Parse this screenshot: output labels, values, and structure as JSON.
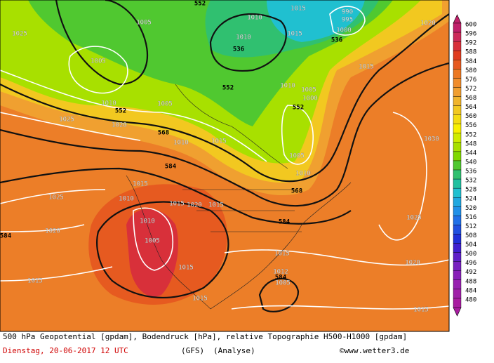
{
  "map": {
    "contour_labels": [
      552,
      1015,
      1010,
      1025,
      1005,
      1005,
      536,
      536,
      1000,
      995,
      990,
      1015,
      1010,
      1020,
      552,
      1015,
      1010,
      1005,
      1000,
      552,
      552,
      1010,
      1005,
      1025,
      1020,
      568,
      1010,
      1015,
      1030,
      584,
      1005,
      1010,
      568,
      1015,
      1010,
      1015,
      1020,
      1015,
      1025,
      1025,
      584,
      1020,
      1010,
      1005,
      584,
      1015,
      1015,
      1020,
      1012,
      584,
      1005,
      1015,
      1015,
      1015
    ]
  },
  "colorbar": {
    "levels": [
      600,
      596,
      592,
      588,
      584,
      580,
      576,
      572,
      568,
      564,
      560,
      556,
      552,
      548,
      544,
      540,
      536,
      532,
      528,
      524,
      520,
      516,
      512,
      508,
      504,
      500,
      496,
      492,
      488,
      484,
      480
    ],
    "colors": [
      "#c0206a",
      "#cc2a5a",
      "#d8303a",
      "#e03c20",
      "#e65a20",
      "#ec7822",
      "#f08c2c",
      "#f09e30",
      "#f0b42c",
      "#f2c820",
      "#f4dc10",
      "#f8f000",
      "#d0ec00",
      "#a8e000",
      "#80d800",
      "#50c830",
      "#30c070",
      "#20c0a0",
      "#20c0d0",
      "#20a8e0",
      "#2090e8",
      "#2070e8",
      "#2050e0",
      "#2030d8",
      "#4020d0",
      "#6020c8",
      "#7820c0",
      "#8820b8",
      "#9820b0",
      "#a020a8",
      "#a81ca0"
    ]
  },
  "caption": {
    "line1": "500 hPa Geopotential [gpdam], Bodendruck [hPa], relative Topographie H500-H1000 [gpdam]",
    "date": "Dienstag, 20-06-2017  12 UTC",
    "model": "(GFS)",
    "run": "(Analyse)",
    "credit": "©www.wetter3.de"
  }
}
